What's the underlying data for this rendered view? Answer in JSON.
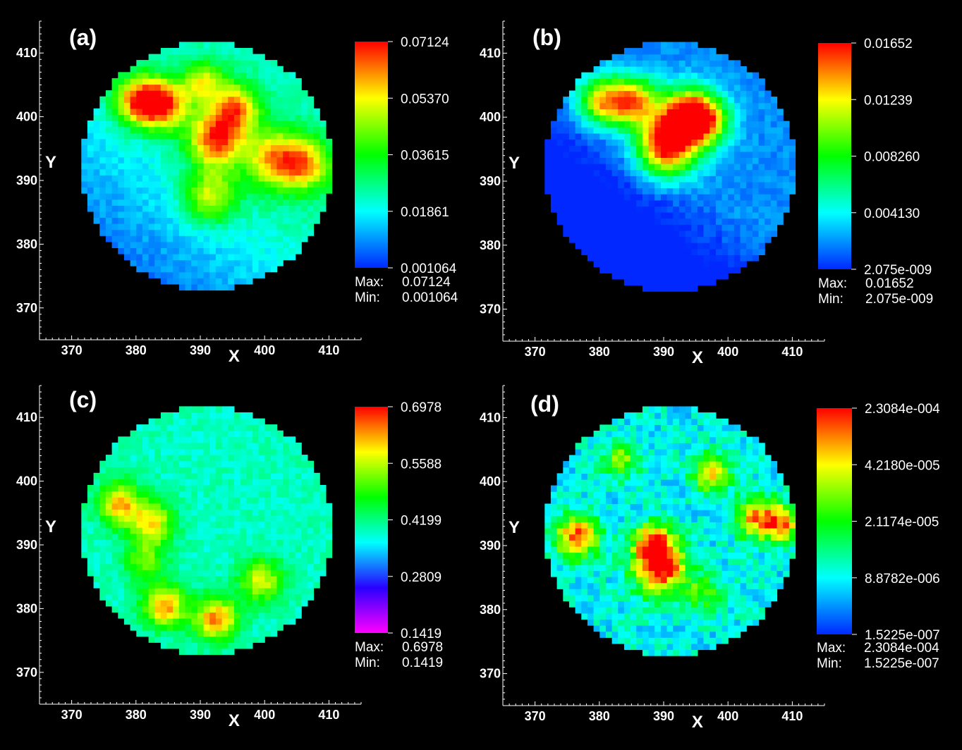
{
  "chart_data": [
    {
      "type": "heatmap",
      "panel_label": "(a)",
      "xlabel": "X",
      "ylabel": "Y",
      "xlim": [
        365,
        415
      ],
      "ylim": [
        365,
        415
      ],
      "xticks": [
        "370",
        "380",
        "390",
        "400",
        "410"
      ],
      "yticks": [
        "370",
        "380",
        "390",
        "400",
        "410"
      ],
      "colorbar_ticks": [
        "0.07124",
        "0.05370",
        "0.03615",
        "0.01861",
        "0.001064"
      ],
      "colormap": "blue-cyan-green-yellow-red",
      "max_label": "Max:",
      "max_value": "0.07124",
      "min_label": "Min:",
      "min_value": "0.001064",
      "domain_circle": {
        "cx": 391,
        "cy": 392.3,
        "r": 19.5
      },
      "hotspots": [
        {
          "x": 380,
          "y": 402,
          "v": 0.92,
          "s": 1.8
        },
        {
          "x": 384,
          "y": 401.5,
          "v": 0.9,
          "s": 1.8
        },
        {
          "x": 392,
          "y": 396,
          "v": 0.95,
          "s": 2.0
        },
        {
          "x": 391,
          "y": 387,
          "v": 0.75,
          "s": 2.0
        },
        {
          "x": 395,
          "y": 401,
          "v": 0.85,
          "s": 1.8
        },
        {
          "x": 401,
          "y": 393,
          "v": 0.8,
          "s": 2.2
        },
        {
          "x": 406,
          "y": 392,
          "v": 0.78,
          "s": 2.0
        },
        {
          "x": 390,
          "y": 405,
          "v": 0.7,
          "s": 1.5
        }
      ]
    },
    {
      "type": "heatmap",
      "panel_label": "(b)",
      "xlabel": "X",
      "ylabel": "Y",
      "xlim": [
        365,
        415
      ],
      "ylim": [
        365,
        415
      ],
      "xticks": [
        "370",
        "380",
        "390",
        "400",
        "410"
      ],
      "yticks": [
        "370",
        "380",
        "390",
        "400",
        "410"
      ],
      "colorbar_ticks": [
        "0.01652",
        "0.01239",
        "0.008260",
        "0.004130",
        "2.075e-009"
      ],
      "colormap": "blue-cyan-green-yellow-red",
      "max_label": "Max:",
      "max_value": "0.01652",
      "min_label": "Min:",
      "min_value": "2.075e-009",
      "domain_circle": {
        "cx": 391,
        "cy": 392.3,
        "r": 19.5
      },
      "hotspots": [
        {
          "x": 380,
          "y": 402,
          "v": 0.75,
          "s": 1.8
        },
        {
          "x": 385,
          "y": 402,
          "v": 0.8,
          "s": 1.8
        },
        {
          "x": 390,
          "y": 395,
          "v": 1.0,
          "s": 2.2
        },
        {
          "x": 393,
          "y": 400,
          "v": 0.85,
          "s": 2.0
        },
        {
          "x": 396,
          "y": 399,
          "v": 0.75,
          "s": 1.8
        }
      ]
    },
    {
      "type": "heatmap",
      "panel_label": "(c)",
      "xlabel": "X",
      "ylabel": "Y",
      "xlim": [
        365,
        415
      ],
      "ylim": [
        365,
        415
      ],
      "xticks": [
        "370",
        "380",
        "390",
        "400",
        "410"
      ],
      "yticks": [
        "370",
        "380",
        "390",
        "400",
        "410"
      ],
      "colorbar_ticks": [
        "0.6978",
        "0.5588",
        "0.4199",
        "0.2809",
        "0.1419"
      ],
      "colormap": "magenta-blue-cyan-green-yellow-red",
      "max_label": "Max:",
      "max_value": "0.6978",
      "min_label": "Min:",
      "min_value": "0.1419",
      "domain_circle": {
        "cx": 391,
        "cy": 392.3,
        "r": 19.5
      },
      "hotspots": [
        {
          "x": 377,
          "y": 396,
          "v": 0.85,
          "s": 1.6
        },
        {
          "x": 382,
          "y": 393,
          "v": 0.82,
          "s": 1.6
        },
        {
          "x": 384,
          "y": 380,
          "v": 0.88,
          "s": 1.6
        },
        {
          "x": 392,
          "y": 378,
          "v": 0.9,
          "s": 1.6
        },
        {
          "x": 399,
          "y": 384,
          "v": 0.78,
          "s": 1.6
        },
        {
          "x": 381,
          "y": 387,
          "v": 0.68,
          "s": 1.5
        }
      ]
    },
    {
      "type": "heatmap",
      "panel_label": "(d)",
      "xlabel": "X",
      "ylabel": "Y",
      "xlim": [
        365,
        415
      ],
      "ylim": [
        365,
        415
      ],
      "xticks": [
        "370",
        "380",
        "390",
        "400",
        "410"
      ],
      "yticks": [
        "370",
        "380",
        "390",
        "400",
        "410"
      ],
      "colorbar_ticks": [
        "2.3084e-004",
        "4.2180e-005",
        "2.1174e-005",
        "8.8782e-006",
        "1.5225e-007"
      ],
      "colormap": "blue-cyan-green-yellow-red",
      "max_label": "Max:",
      "max_value": "2.3084e-004",
      "min_label": "Min:",
      "min_value": "1.5225e-007",
      "domain_circle": {
        "cx": 391,
        "cy": 392.3,
        "r": 19.5
      },
      "hotspots": [
        {
          "x": 376,
          "y": 391,
          "v": 0.95,
          "s": 1.6
        },
        {
          "x": 389,
          "y": 386,
          "v": 1.0,
          "s": 2.0
        },
        {
          "x": 388,
          "y": 390,
          "v": 0.85,
          "s": 1.5
        },
        {
          "x": 397,
          "y": 401,
          "v": 0.8,
          "s": 1.4
        },
        {
          "x": 404,
          "y": 394,
          "v": 0.82,
          "s": 1.6
        },
        {
          "x": 408,
          "y": 393,
          "v": 0.8,
          "s": 1.4
        },
        {
          "x": 383,
          "y": 403,
          "v": 0.6,
          "s": 1.4
        },
        {
          "x": 396,
          "y": 382,
          "v": 0.55,
          "s": 1.4
        }
      ]
    }
  ]
}
